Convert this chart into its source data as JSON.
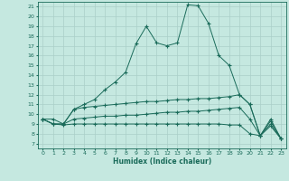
{
  "xlabel": "Humidex (Indice chaleur)",
  "background_color": "#c5e8e0",
  "line_color": "#1a6b5a",
  "grid_color": "#aacfc8",
  "xlim": [
    -0.5,
    23.5
  ],
  "ylim": [
    6.5,
    21.5
  ],
  "xticks": [
    0,
    1,
    2,
    3,
    4,
    5,
    6,
    7,
    8,
    9,
    10,
    11,
    12,
    13,
    14,
    15,
    16,
    17,
    18,
    19,
    20,
    21,
    22,
    23
  ],
  "yticks": [
    7,
    8,
    9,
    10,
    11,
    12,
    13,
    14,
    15,
    16,
    17,
    18,
    19,
    20,
    21
  ],
  "lines": [
    {
      "x": [
        0,
        1,
        2,
        3,
        4,
        5,
        6,
        7,
        8,
        9,
        10,
        11,
        12,
        13,
        14,
        15,
        16,
        17,
        18,
        19,
        20,
        21,
        22,
        23
      ],
      "y": [
        9.5,
        9.5,
        9.0,
        10.5,
        11.0,
        11.5,
        12.5,
        13.3,
        14.3,
        17.2,
        19.0,
        17.3,
        17.0,
        17.3,
        21.2,
        21.1,
        19.3,
        16.0,
        15.0,
        12.0,
        11.0,
        7.8,
        9.5,
        7.5
      ]
    },
    {
      "x": [
        0,
        1,
        2,
        3,
        4,
        5,
        6,
        7,
        8,
        9,
        10,
        11,
        12,
        13,
        14,
        15,
        16,
        17,
        18,
        19,
        20,
        21,
        22,
        23
      ],
      "y": [
        9.5,
        9.0,
        9.0,
        10.5,
        10.7,
        10.8,
        10.9,
        11.0,
        11.1,
        11.2,
        11.3,
        11.3,
        11.4,
        11.5,
        11.5,
        11.6,
        11.6,
        11.7,
        11.8,
        12.0,
        11.0,
        7.8,
        9.3,
        7.5
      ]
    },
    {
      "x": [
        0,
        1,
        2,
        3,
        4,
        5,
        6,
        7,
        8,
        9,
        10,
        11,
        12,
        13,
        14,
        15,
        16,
        17,
        18,
        19,
        20,
        21,
        22,
        23
      ],
      "y": [
        9.5,
        9.0,
        9.0,
        9.5,
        9.6,
        9.7,
        9.8,
        9.8,
        9.9,
        9.9,
        10.0,
        10.1,
        10.2,
        10.2,
        10.3,
        10.3,
        10.4,
        10.5,
        10.6,
        10.7,
        9.5,
        7.8,
        9.0,
        7.5
      ]
    },
    {
      "x": [
        0,
        1,
        2,
        3,
        4,
        5,
        6,
        7,
        8,
        9,
        10,
        11,
        12,
        13,
        14,
        15,
        16,
        17,
        18,
        19,
        20,
        21,
        22,
        23
      ],
      "y": [
        9.5,
        9.0,
        8.9,
        9.0,
        9.0,
        9.0,
        9.0,
        9.0,
        9.0,
        9.0,
        9.0,
        9.0,
        9.0,
        9.0,
        9.0,
        9.0,
        9.0,
        9.0,
        8.9,
        8.9,
        8.0,
        7.8,
        8.8,
        7.5
      ]
    }
  ]
}
